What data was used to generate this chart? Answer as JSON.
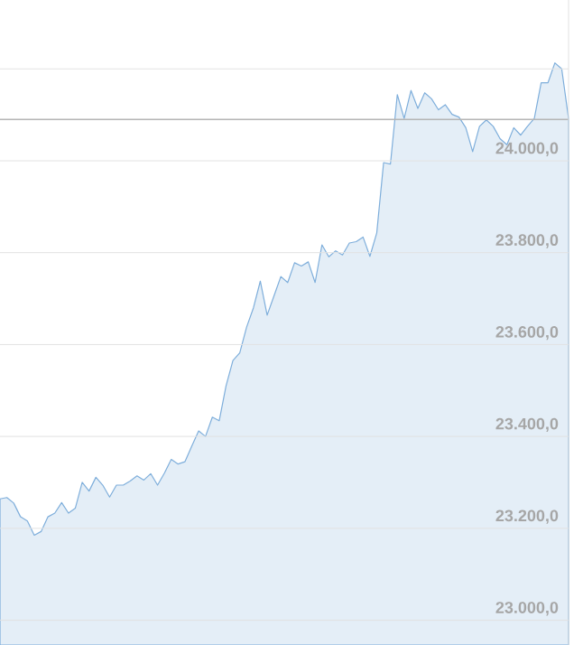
{
  "chart_data": {
    "type": "area",
    "categories": [
      null,
      null,
      null,
      null,
      null,
      null,
      null,
      null,
      null,
      null,
      null,
      null,
      null,
      null,
      null,
      null,
      null,
      null,
      null,
      null,
      null,
      null,
      null,
      null,
      null,
      null,
      null,
      null,
      null,
      null,
      null,
      null,
      null,
      null,
      null,
      null,
      null,
      null,
      null,
      null,
      null,
      null,
      null,
      null,
      null,
      null,
      null,
      null,
      null,
      null,
      null,
      null,
      null,
      null,
      null,
      null,
      null,
      null,
      null,
      null,
      null,
      null,
      null,
      null,
      null,
      null,
      null,
      null,
      null,
      null,
      null,
      null,
      null,
      null,
      null,
      null,
      null,
      null,
      null,
      null,
      null,
      null,
      null,
      null
    ],
    "series": [
      {
        "color": "#7eaedb",
        "values": [
          23264,
          23267,
          23255,
          23225,
          23216,
          23185,
          23193,
          23225,
          23233,
          23256,
          23233,
          23244,
          23300,
          23281,
          23311,
          23294,
          23268,
          23294,
          23294,
          23303,
          23314,
          23305,
          23319,
          23294,
          23320,
          23350,
          23340,
          23345,
          23379,
          23412,
          23400,
          23442,
          23434,
          23510,
          23565,
          23582,
          23638,
          23680,
          23738,
          23664,
          23706,
          23748,
          23735,
          23778,
          23771,
          23780,
          23735,
          23817,
          23791,
          23804,
          23795,
          23821,
          23824,
          23834,
          23792,
          23843,
          23996,
          23993,
          24144,
          24092,
          24153,
          24114,
          24148,
          24135,
          24111,
          24122,
          24101,
          24095,
          24072,
          24020,
          24075,
          24089,
          24075,
          24048,
          24035,
          24072,
          24056,
          24075,
          24092,
          24170,
          24170,
          24213,
          24200,
          24092
        ]
      }
    ],
    "ylim": [
      22946,
      24350
    ],
    "yticks": [
      {
        "value": 23000,
        "label": "23.000,0"
      },
      {
        "value": 23200,
        "label": "23.200,0"
      },
      {
        "value": 23400,
        "label": "23.400,0"
      },
      {
        "value": 23600,
        "label": "23.600,0"
      },
      {
        "value": 23800,
        "label": "23.800,0"
      },
      {
        "value": 24000,
        "label": "24.000,0"
      },
      {
        "value": 24200,
        "label": null
      }
    ],
    "grid": "y",
    "tick_labels": "y",
    "ref_lines": [
      {
        "axis": "y",
        "value": 24090,
        "color": "#b4b4b4"
      }
    ]
  }
}
